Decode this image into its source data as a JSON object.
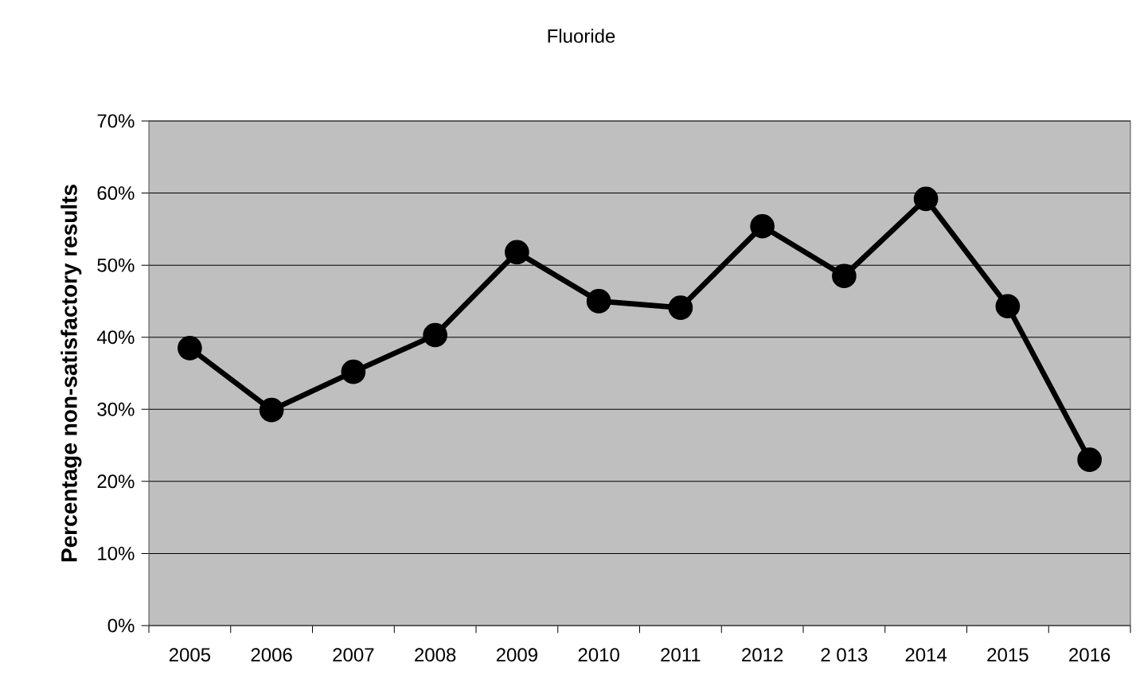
{
  "chart_data": {
    "type": "line",
    "title": "Fluoride",
    "ylabel": "Percentage non-satisfactory results",
    "categories": [
      "2005",
      "2006",
      "2007",
      "2008",
      "2009",
      "2010",
      "2011",
      "2012",
      "2 013",
      "2014",
      "2015",
      "2016"
    ],
    "series": [
      {
        "color": "#000000",
        "values": [
          38.5,
          29.9,
          35.2,
          40.3,
          51.8,
          45.0,
          44.1,
          55.4,
          48.5,
          59.2,
          44.3,
          23.0
        ]
      }
    ],
    "ylim": [
      0,
      70
    ],
    "yticks": [
      {
        "value": 0,
        "label": "0%"
      },
      {
        "value": 10,
        "label": "10%"
      },
      {
        "value": 20,
        "label": "20%"
      },
      {
        "value": 30,
        "label": "30%"
      },
      {
        "value": 40,
        "label": "40%"
      },
      {
        "value": 50,
        "label": "50%"
      },
      {
        "value": 60,
        "label": "60%"
      },
      {
        "value": 70,
        "label": "70%"
      }
    ],
    "grid": "y",
    "marker": "circle",
    "line_style": "solid"
  }
}
